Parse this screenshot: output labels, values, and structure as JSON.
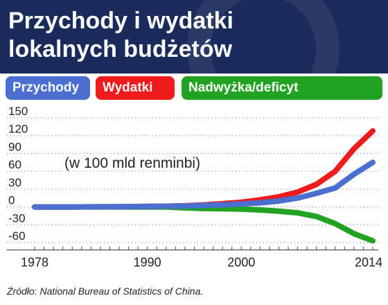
{
  "header": {
    "title": "Przychody i wydatki\nlokalnych budżetów"
  },
  "legend": [
    "Przychody",
    "Wydatki",
    "Nadwyżka/deficyt"
  ],
  "source": "Źródło: National Bureau of Statistics of China.",
  "colors": {
    "header_bg": "#1a2a5a",
    "revenue": "#4a6fd1",
    "expenditure": "#ef1b1b",
    "balance": "#21a321",
    "axis": "#444444"
  },
  "chart_data": {
    "type": "line",
    "title": "Przychody i wydatki lokalnych budżetów",
    "annotation": "(w 100 mld renminbi)",
    "xlim": [
      1978,
      2014
    ],
    "ylim": [
      -70,
      150
    ],
    "x_ticks": [
      1978,
      1990,
      2000,
      2014
    ],
    "y_ticks": [
      150,
      120,
      90,
      60,
      30,
      0,
      -30,
      -60
    ],
    "y_tick_labels": [
      "150",
      "120",
      "90",
      "60",
      "30",
      "0",
      "-30",
      "-60"
    ],
    "grid": true,
    "series": [
      {
        "name": "Przychody",
        "color": "#4a6fd1",
        "x": [
          1978,
          1980,
          1982,
          1984,
          1986,
          1988,
          1990,
          1992,
          1994,
          1996,
          1998,
          2000,
          2002,
          2004,
          2006,
          2008,
          2010,
          2012,
          2014
        ],
        "y": [
          0,
          0,
          0,
          0.2,
          0.4,
          0.6,
          0.9,
          1.2,
          1.5,
          2.5,
          3.5,
          5,
          7,
          10,
          15,
          23,
          32,
          55,
          75
        ]
      },
      {
        "name": "Wydatki",
        "color": "#ef1b1b",
        "x": [
          1978,
          1980,
          1982,
          1984,
          1986,
          1988,
          1990,
          1992,
          1994,
          1996,
          1998,
          2000,
          2002,
          2004,
          2006,
          2008,
          2010,
          2012,
          2014
        ],
        "y": [
          0,
          0,
          0,
          0.2,
          0.4,
          0.6,
          0.9,
          1.2,
          2,
          3.5,
          5.5,
          8,
          12,
          17,
          25,
          38,
          60,
          98,
          128
        ]
      },
      {
        "name": "Nadwyżka/deficyt",
        "color": "#21a321",
        "x": [
          1978,
          1980,
          1982,
          1984,
          1986,
          1988,
          1990,
          1992,
          1994,
          1996,
          1998,
          2000,
          2002,
          2004,
          2006,
          2008,
          2010,
          2012,
          2014
        ],
        "y": [
          0,
          0,
          0,
          0,
          0,
          0,
          0,
          0,
          -1.5,
          -2.5,
          -3,
          -3.5,
          -5,
          -7,
          -10,
          -16,
          -28,
          -45,
          -57
        ]
      }
    ]
  }
}
